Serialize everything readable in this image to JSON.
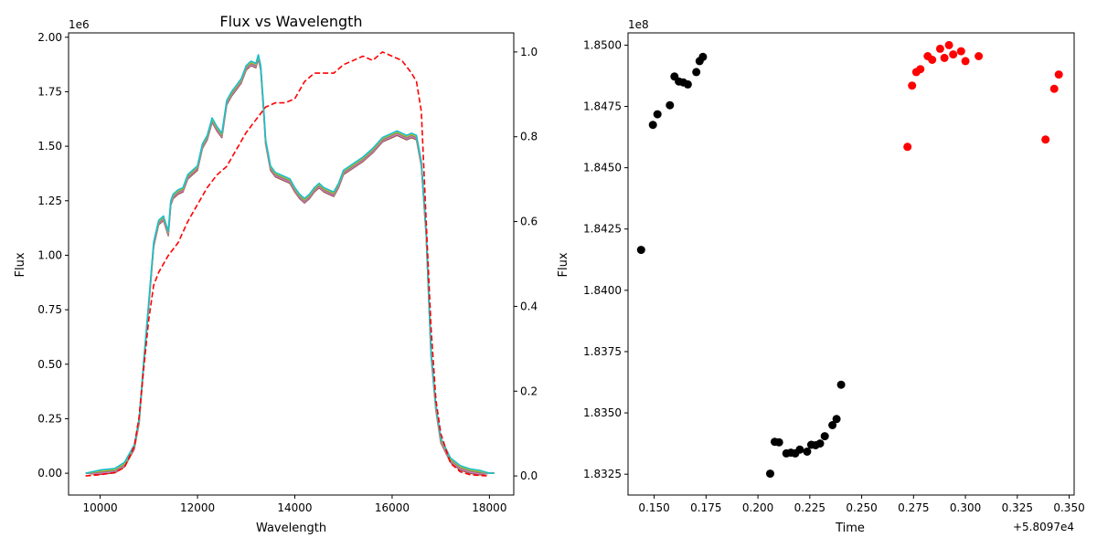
{
  "colors": {
    "spectrum_series": [
      "#8c564b",
      "#e377c2",
      "#7f7f7f",
      "#bcbd22",
      "#17becf"
    ],
    "throughput": "#ff0000",
    "black_points": "#000000",
    "red_points": "#ff0000"
  },
  "chart_data": [
    {
      "type": "line",
      "title": "Flux vs Wavelength",
      "xlabel": "Wavelength",
      "ylabel": "Flux",
      "y_offset_text": "1e6",
      "xlim": [
        9350,
        18500
      ],
      "ylim": [
        -0.1,
        2.02
      ],
      "ylim_right": [
        -0.045,
        1.045
      ],
      "xticks": [
        10000,
        12000,
        14000,
        16000,
        18000
      ],
      "xtick_labels": [
        "10000",
        "12000",
        "14000",
        "16000",
        "18000"
      ],
      "yticks": [
        0,
        0.25,
        0.5,
        0.75,
        1.0,
        1.25,
        1.5,
        1.75,
        2.0
      ],
      "ytick_labels": [
        "0.00",
        "0.25",
        "0.50",
        "0.75",
        "1.00",
        "1.25",
        "1.50",
        "1.75",
        "2.00"
      ],
      "yticks_right": [
        0,
        0.2,
        0.4,
        0.6,
        0.8,
        1.0
      ],
      "ytick_labels_right": [
        "0.0",
        "0.2",
        "0.4",
        "0.6",
        "0.8",
        "1.0"
      ],
      "grid": false,
      "spectrum": {
        "x": [
          9700,
          10000,
          10300,
          10500,
          10700,
          10800,
          10900,
          11000,
          11100,
          11200,
          11300,
          11400,
          11450,
          11500,
          11600,
          11700,
          11800,
          11900,
          12000,
          12100,
          12200,
          12300,
          12400,
          12500,
          12600,
          12700,
          12800,
          12900,
          13000,
          13100,
          13200,
          13250,
          13300,
          13350,
          13400,
          13500,
          13600,
          13700,
          13800,
          13900,
          14000,
          14100,
          14200,
          14300,
          14400,
          14500,
          14600,
          14700,
          14800,
          14900,
          15000,
          15200,
          15400,
          15600,
          15800,
          16000,
          16100,
          16200,
          16300,
          16400,
          16500,
          16600,
          16700,
          16800,
          16900,
          17000,
          17200,
          17400,
          17600,
          17800,
          18000,
          18100
        ],
        "y": [
          0.0,
          0.005,
          0.012,
          0.04,
          0.12,
          0.24,
          0.52,
          0.78,
          1.05,
          1.15,
          1.17,
          1.1,
          1.24,
          1.27,
          1.29,
          1.3,
          1.36,
          1.38,
          1.4,
          1.5,
          1.54,
          1.62,
          1.58,
          1.55,
          1.7,
          1.74,
          1.77,
          1.8,
          1.86,
          1.88,
          1.87,
          1.91,
          1.86,
          1.7,
          1.52,
          1.4,
          1.37,
          1.36,
          1.35,
          1.34,
          1.3,
          1.27,
          1.25,
          1.27,
          1.3,
          1.32,
          1.3,
          1.29,
          1.28,
          1.32,
          1.38,
          1.41,
          1.44,
          1.48,
          1.53,
          1.55,
          1.56,
          1.55,
          1.54,
          1.55,
          1.54,
          1.42,
          1.1,
          0.55,
          0.3,
          0.15,
          0.06,
          0.025,
          0.01,
          0.003,
          0.0,
          0.0
        ],
        "series_offsets": [
          -0.01,
          -0.005,
          0.0,
          0.005,
          0.01
        ]
      },
      "throughput": {
        "x": [
          9700,
          10000,
          10300,
          10500,
          10700,
          10800,
          10900,
          11000,
          11100,
          11200,
          11400,
          11600,
          11800,
          12000,
          12200,
          12400,
          12600,
          12800,
          13000,
          13200,
          13400,
          13600,
          13800,
          14000,
          14200,
          14400,
          14600,
          14800,
          15000,
          15200,
          15400,
          15600,
          15800,
          16000,
          16200,
          16400,
          16500,
          16600,
          16700,
          16800,
          16900,
          17000,
          17200,
          17400,
          17600,
          17800,
          18000
        ],
        "y": [
          0.0,
          0.003,
          0.008,
          0.02,
          0.07,
          0.14,
          0.26,
          0.37,
          0.45,
          0.48,
          0.52,
          0.55,
          0.6,
          0.64,
          0.68,
          0.71,
          0.73,
          0.77,
          0.81,
          0.84,
          0.87,
          0.88,
          0.88,
          0.89,
          0.93,
          0.95,
          0.95,
          0.95,
          0.97,
          0.98,
          0.99,
          0.98,
          1.0,
          0.99,
          0.98,
          0.95,
          0.93,
          0.86,
          0.6,
          0.35,
          0.18,
          0.1,
          0.03,
          0.01,
          0.003,
          0.001,
          0.0
        ]
      }
    },
    {
      "type": "scatter",
      "title": "",
      "xlabel": "Time",
      "ylabel": "Flux",
      "y_offset_text": "1e8",
      "x_offset_text": "+5.8097e4",
      "xlim": [
        0.1374,
        0.3524
      ],
      "ylim": [
        1.83165,
        1.8505
      ],
      "xticks": [
        0.15,
        0.175,
        0.2,
        0.225,
        0.25,
        0.275,
        0.3,
        0.325,
        0.35
      ],
      "xtick_labels": [
        "0.150",
        "0.175",
        "0.200",
        "0.225",
        "0.250",
        "0.275",
        "0.300",
        "0.325",
        "0.350"
      ],
      "yticks": [
        1.8325,
        1.835,
        1.8375,
        1.84,
        1.8425,
        1.845,
        1.8475,
        1.85
      ],
      "ytick_labels": [
        "1.8325",
        "1.8350",
        "1.8375",
        "1.8400",
        "1.8425",
        "1.8450",
        "1.8475",
        "1.8500"
      ],
      "grid": false,
      "series": [
        {
          "color": "#000000",
          "x": [
            0.1437,
            0.1494,
            0.1516,
            0.1576,
            0.1598,
            0.1619,
            0.164,
            0.1662,
            0.1703,
            0.1719,
            0.1735,
            0.2059,
            0.2081,
            0.2102,
            0.2137,
            0.2159,
            0.218,
            0.2202,
            0.2237,
            0.2257,
            0.2278,
            0.2299,
            0.2322,
            0.2359,
            0.2379,
            0.2401
          ],
          "y": [
            1.84165,
            1.84675,
            1.84718,
            1.84755,
            1.84872,
            1.84852,
            1.84848,
            1.8484,
            1.8489,
            1.84935,
            1.84952,
            1.83252,
            1.83382,
            1.8338,
            1.83335,
            1.83338,
            1.83335,
            1.8335,
            1.83342,
            1.8337,
            1.83368,
            1.83375,
            1.83405,
            1.8345,
            1.83475,
            1.83615
          ]
        },
        {
          "color": "#ff0000",
          "x": [
            0.2721,
            0.2743,
            0.2763,
            0.2783,
            0.2818,
            0.284,
            0.2878,
            0.2899,
            0.2921,
            0.2941,
            0.2979,
            0.3,
            0.3064,
            0.3386,
            0.3428,
            0.345
          ],
          "y": [
            1.84585,
            1.84835,
            1.8489,
            1.84902,
            1.84955,
            1.8494,
            1.84985,
            1.84948,
            1.85,
            1.84962,
            1.84975,
            1.84935,
            1.84955,
            1.84615,
            1.84822,
            1.8488
          ]
        }
      ]
    }
  ]
}
